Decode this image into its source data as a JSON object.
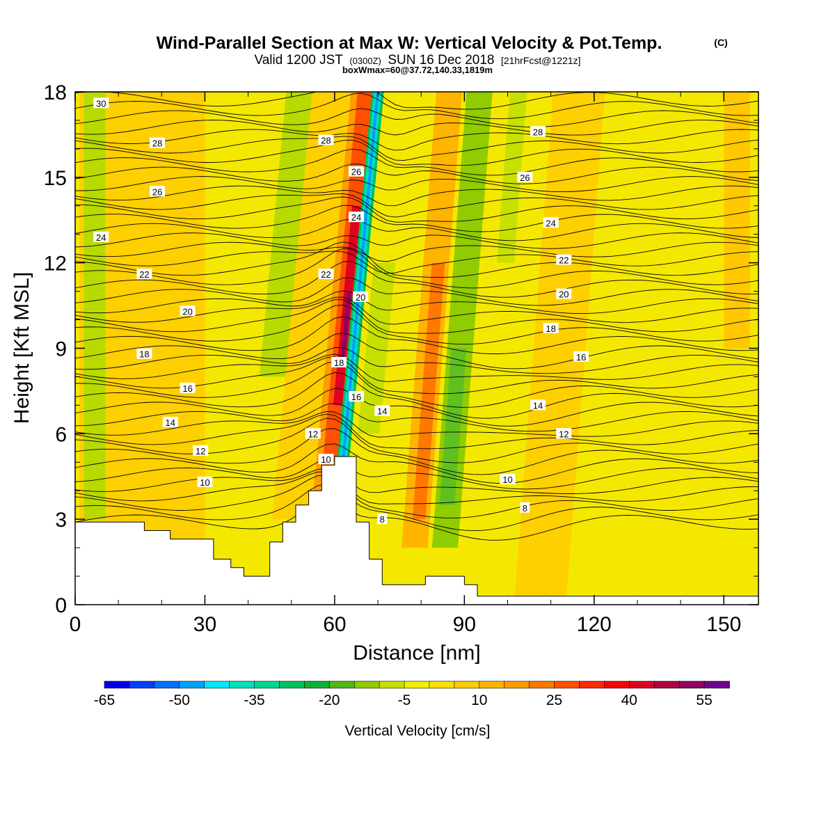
{
  "header": {
    "title": "Wind-Parallel Section at Max W: Vertical Velocity & Pot.Temp.",
    "title_mark": "(C)",
    "sub_a": "Valid 1200 JST",
    "sub_b": "(0300Z)",
    "sub_c": "SUN 16 Dec 2018",
    "sub_d": "[21hrFcst@1221z]",
    "line3": "boxWmax=60@37.72,140.33,1819m"
  },
  "chart_data": {
    "type": "heatmap",
    "xlabel": "Distance [nm]",
    "ylabel": "Height [Kft MSL]",
    "xlim": [
      0,
      158
    ],
    "ylim": [
      0,
      18
    ],
    "x_ticks": [
      0,
      30,
      60,
      90,
      120,
      150
    ],
    "y_ticks": [
      0,
      3,
      6,
      9,
      12,
      15,
      18
    ],
    "colorbar": {
      "label": "Vertical Velocity [cm/s]",
      "tick_labels": [
        "-65",
        "-50",
        "-35",
        "-20",
        "-5",
        "10",
        "25",
        "40",
        "55"
      ],
      "tick_values": [
        -65,
        -50,
        -35,
        -20,
        -5,
        10,
        25,
        40,
        55
      ],
      "colors": [
        "#0000f0",
        "#0040ff",
        "#0070ff",
        "#00a0ff",
        "#00e8ff",
        "#00e0c0",
        "#00d890",
        "#00c060",
        "#10b030",
        "#50b818",
        "#90cc00",
        "#c8e000",
        "#f0f000",
        "#ffe000",
        "#ffcc00",
        "#ffb400",
        "#ff9c00",
        "#ff7800",
        "#ff5000",
        "#ff2800",
        "#ff0000",
        "#e00020",
        "#b00040",
        "#900060",
        "#700090"
      ]
    },
    "contour_labels": [
      {
        "text": "30",
        "x": 6,
        "y": 17.6
      },
      {
        "text": "28",
        "x": 19,
        "y": 16.2
      },
      {
        "text": "26",
        "x": 19,
        "y": 14.5
      },
      {
        "text": "24",
        "x": 6,
        "y": 12.9
      },
      {
        "text": "22",
        "x": 16,
        "y": 11.6
      },
      {
        "text": "20",
        "x": 26,
        "y": 10.3
      },
      {
        "text": "18",
        "x": 16,
        "y": 8.8
      },
      {
        "text": "16",
        "x": 26,
        "y": 7.6
      },
      {
        "text": "14",
        "x": 22,
        "y": 6.4
      },
      {
        "text": "12",
        "x": 29,
        "y": 5.4
      },
      {
        "text": "10",
        "x": 30,
        "y": 4.3
      },
      {
        "text": "28",
        "x": 58,
        "y": 16.3
      },
      {
        "text": "26",
        "x": 65,
        "y": 15.2
      },
      {
        "text": "24",
        "x": 65,
        "y": 13.6
      },
      {
        "text": "22",
        "x": 58,
        "y": 11.6
      },
      {
        "text": "20",
        "x": 66,
        "y": 10.8
      },
      {
        "text": "18",
        "x": 61,
        "y": 8.5
      },
      {
        "text": "16",
        "x": 65,
        "y": 7.3
      },
      {
        "text": "14",
        "x": 71,
        "y": 6.8
      },
      {
        "text": "12",
        "x": 55,
        "y": 6.0
      },
      {
        "text": "10",
        "x": 58,
        "y": 5.1
      },
      {
        "text": "8",
        "x": 71,
        "y": 3.0
      },
      {
        "text": "28",
        "x": 107,
        "y": 16.6
      },
      {
        "text": "26",
        "x": 104,
        "y": 15.0
      },
      {
        "text": "24",
        "x": 110,
        "y": 13.4
      },
      {
        "text": "22",
        "x": 113,
        "y": 12.1
      },
      {
        "text": "20",
        "x": 113,
        "y": 10.9
      },
      {
        "text": "18",
        "x": 110,
        "y": 9.7
      },
      {
        "text": "16",
        "x": 117,
        "y": 8.7
      },
      {
        "text": "14",
        "x": 107,
        "y": 7.0
      },
      {
        "text": "12",
        "x": 113,
        "y": 6.0
      },
      {
        "text": "10",
        "x": 100,
        "y": 4.4
      },
      {
        "text": "8",
        "x": 104,
        "y": 3.4
      }
    ]
  }
}
